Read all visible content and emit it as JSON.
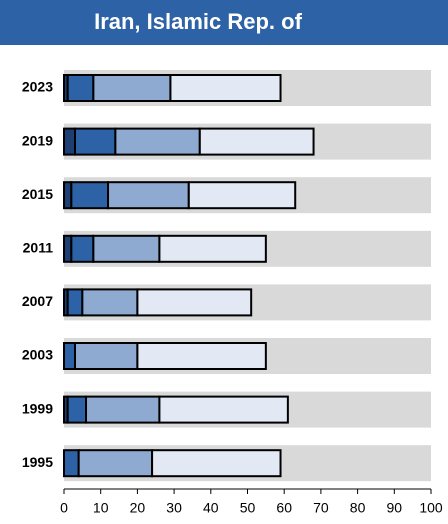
{
  "chart_data": {
    "type": "stacked-bar-horizontal",
    "title": "Iran, Islamic Rep. of",
    "categories": [
      "2023",
      "2019",
      "2015",
      "2011",
      "2007",
      "2003",
      "1999",
      "1995"
    ],
    "series": [
      {
        "color": "#1d3f73",
        "values": [
          1,
          3,
          2,
          2,
          1,
          0,
          1,
          0
        ]
      },
      {
        "color": "#2d62a6",
        "values": [
          7,
          11,
          10,
          6,
          4,
          3,
          5,
          4
        ]
      },
      {
        "color": "#8eaad0",
        "values": [
          21,
          23,
          22,
          18,
          15,
          17,
          20,
          20
        ]
      },
      {
        "color": "#e2e9f4",
        "values": [
          30,
          31,
          29,
          29,
          31,
          35,
          35,
          35
        ]
      }
    ],
    "xlim": [
      0,
      100
    ],
    "xticks": [
      0,
      10,
      20,
      30,
      40,
      50,
      60,
      70,
      80,
      90,
      100
    ],
    "background_band": "#d9d9d9",
    "title_color": "#2d62a6"
  }
}
